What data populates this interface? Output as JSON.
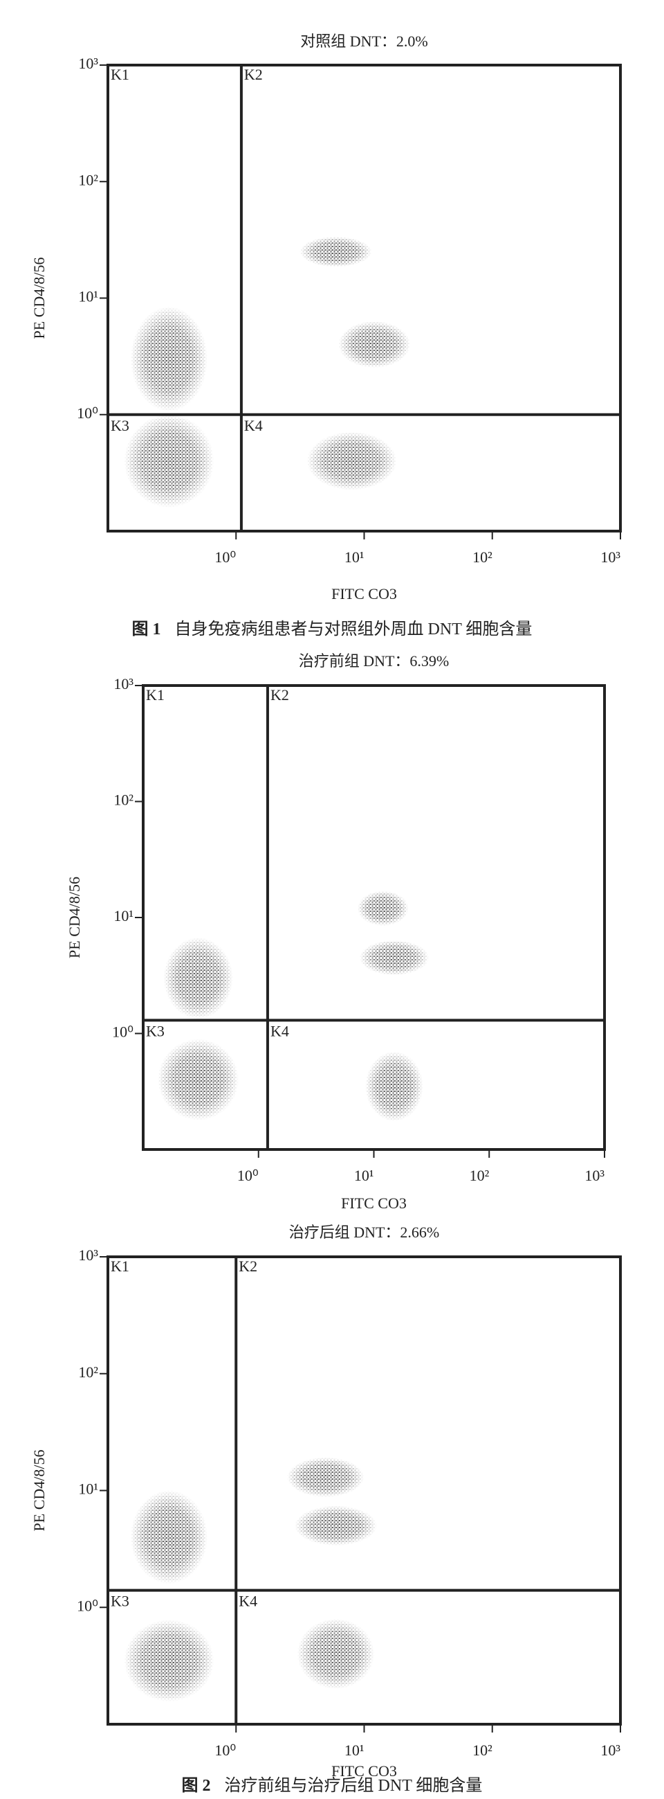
{
  "chart_data": [
    {
      "type": "scatter",
      "title": "对照组 DNT：2.0%",
      "xlabel": "FITC CO3",
      "ylabel": "PE CD4/8/56",
      "xscale": "log",
      "yscale": "log",
      "xlim": [
        0.1,
        1000
      ],
      "ylim": [
        0.1,
        1000
      ],
      "xticks": [
        {
          "value": 1,
          "label": "10⁰"
        },
        {
          "value": 10,
          "label": "10¹"
        },
        {
          "value": 100,
          "label": "10²"
        },
        {
          "value": 1000,
          "label": "10³"
        }
      ],
      "yticks": [
        {
          "value": 1,
          "label": "10⁰"
        },
        {
          "value": 10,
          "label": "10¹"
        },
        {
          "value": 100,
          "label": "10²"
        },
        {
          "value": 1000,
          "label": "10³"
        }
      ],
      "gate_x": 1.1,
      "gate_y": 1,
      "quadrants": [
        "K1",
        "K2",
        "K3",
        "K4"
      ],
      "color": "#555555",
      "clusters": [
        {
          "x": 0.3,
          "y": 0.4,
          "x_spread": 0.35,
          "y_spread": 0.4
        },
        {
          "x": 0.3,
          "y": 3,
          "x_spread": 0.3,
          "y_spread": 0.45
        },
        {
          "x": 6,
          "y": 25,
          "x_spread": 0.28,
          "y_spread": 0.13
        },
        {
          "x": 12,
          "y": 4,
          "x_spread": 0.28,
          "y_spread": 0.2
        },
        {
          "x": 8,
          "y": 0.4,
          "x_spread": 0.35,
          "y_spread": 0.25
        }
      ]
    },
    {
      "type": "scatter",
      "title": "治疗前组 DNT：6.39%",
      "xlabel": "FITC CO3",
      "ylabel": "PE CD4/8/56",
      "xscale": "log",
      "yscale": "log",
      "xlim": [
        0.1,
        1000
      ],
      "ylim": [
        0.1,
        1000
      ],
      "xticks": [
        {
          "value": 1,
          "label": "10⁰"
        },
        {
          "value": 10,
          "label": "10¹"
        },
        {
          "value": 100,
          "label": "10²"
        },
        {
          "value": 1000,
          "label": "10³"
        }
      ],
      "yticks": [
        {
          "value": 1,
          "label": "10⁰"
        },
        {
          "value": 10,
          "label": "10¹"
        },
        {
          "value": 100,
          "label": "10²"
        },
        {
          "value": 1000,
          "label": "10³"
        }
      ],
      "gate_x": 1.2,
      "gate_y": 1.3,
      "quadrants": [
        "K1",
        "K2",
        "K3",
        "K4"
      ],
      "color": "#555555",
      "clusters": [
        {
          "x": 0.3,
          "y": 0.4,
          "x_spread": 0.35,
          "y_spread": 0.35
        },
        {
          "x": 0.3,
          "y": 3,
          "x_spread": 0.3,
          "y_spread": 0.35
        },
        {
          "x": 12,
          "y": 12,
          "x_spread": 0.22,
          "y_spread": 0.15
        },
        {
          "x": 15,
          "y": 4.5,
          "x_spread": 0.3,
          "y_spread": 0.15
        },
        {
          "x": 15,
          "y": 0.35,
          "x_spread": 0.25,
          "y_spread": 0.3
        }
      ]
    },
    {
      "type": "scatter",
      "title": "治疗后组 DNT：2.66%",
      "xlabel": "FITC CO3",
      "ylabel": "PE CD4/8/56",
      "xscale": "log",
      "yscale": "log",
      "xlim": [
        0.1,
        1000
      ],
      "ylim": [
        0.1,
        1000
      ],
      "xticks": [
        {
          "value": 1,
          "label": "10⁰"
        },
        {
          "value": 10,
          "label": "10¹"
        },
        {
          "value": 100,
          "label": "10²"
        },
        {
          "value": 1000,
          "label": "10³"
        }
      ],
      "yticks": [
        {
          "value": 1,
          "label": "10⁰"
        },
        {
          "value": 10,
          "label": "10¹"
        },
        {
          "value": 100,
          "label": "10²"
        },
        {
          "value": 1000,
          "label": "10³"
        }
      ],
      "gate_x": 1,
      "gate_y": 1.4,
      "quadrants": [
        "K1",
        "K2",
        "K3",
        "K4"
      ],
      "color": "#555555",
      "clusters": [
        {
          "x": 0.3,
          "y": 0.35,
          "x_spread": 0.35,
          "y_spread": 0.35
        },
        {
          "x": 0.3,
          "y": 4,
          "x_spread": 0.3,
          "y_spread": 0.4
        },
        {
          "x": 5,
          "y": 13,
          "x_spread": 0.3,
          "y_spread": 0.17
        },
        {
          "x": 6,
          "y": 5,
          "x_spread": 0.32,
          "y_spread": 0.17
        },
        {
          "x": 6,
          "y": 0.4,
          "x_spread": 0.3,
          "y_spread": 0.3
        }
      ]
    }
  ],
  "captions": [
    {
      "label": "图 1",
      "text": "自身免疫病组患者与对照组外周血 DNT 细胞含量"
    },
    {
      "label": "图 2",
      "text": "治疗前组与治疗后组 DNT 细胞含量"
    }
  ]
}
